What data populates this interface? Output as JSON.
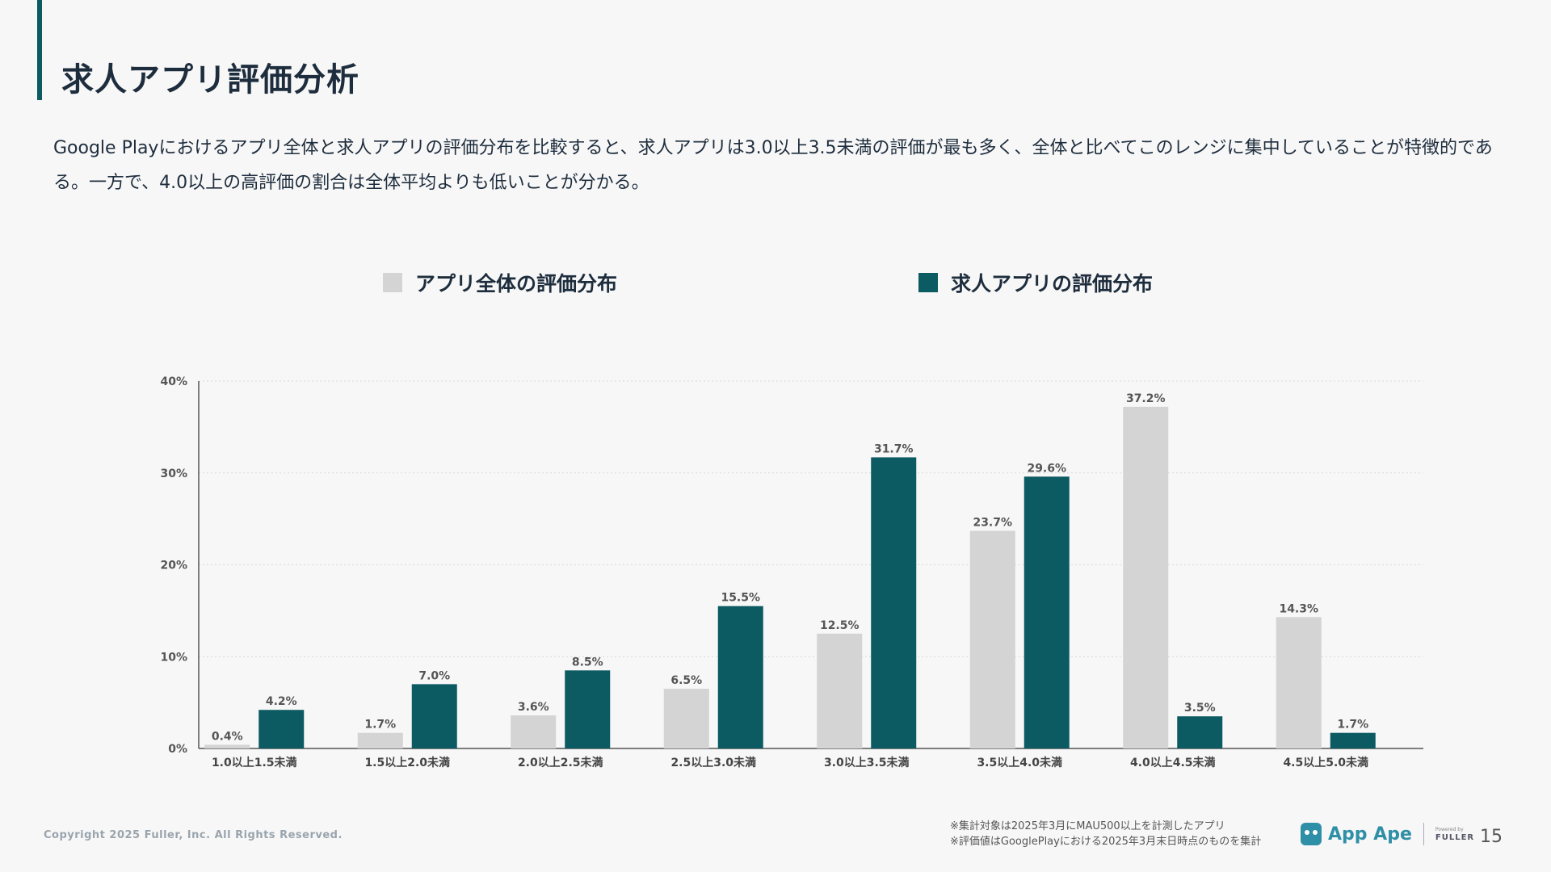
{
  "title": "求人アプリ評価分析",
  "description": "Google Playにおけるアプリ全体と求人アプリの評価分布を比較すると、求人アプリは3.0以上3.5未満の評価が最も多く、全体と比べてこのレンジに集中していることが特徴的である。一方で、4.0以上の高評価の割合は全体平均よりも低いことが分かる。",
  "legend": {
    "series1": "アプリ全体の評価分布",
    "series2": "求人アプリの評価分布"
  },
  "colors": {
    "series1": "#d4d4d4",
    "series2": "#0c5a62",
    "accent": "#0c5a62"
  },
  "chart_data": {
    "type": "bar",
    "categories": [
      "1.0以上1.5未満",
      "1.5以上2.0未満",
      "2.0以上2.5未満",
      "2.5以上3.0未満",
      "3.0以上3.5未満",
      "3.5以上4.0未満",
      "4.0以上4.5未満",
      "4.5以上5.0未満"
    ],
    "series": [
      {
        "name": "アプリ全体の評価分布",
        "values": [
          0.4,
          1.7,
          3.6,
          6.5,
          12.5,
          23.7,
          37.2,
          14.3
        ]
      },
      {
        "name": "求人アプリの評価分布",
        "values": [
          4.2,
          7.0,
          8.5,
          15.5,
          31.7,
          29.6,
          3.5,
          1.7
        ]
      }
    ],
    "y_ticks": [
      "0%",
      "10%",
      "20%",
      "30%",
      "40%"
    ],
    "ylim": [
      0,
      40
    ],
    "grid": true,
    "legend_position": "top"
  },
  "footer": {
    "copyright": "Copyright 2025 Fuller, Inc. All Rights Reserved.",
    "note1": "※集計対象は2025年3月にMAU500以上を計測したアプリ",
    "note2": "※評価値はGooglePlayにおける2025年3月末日時点のものを集計",
    "logo_text": "App Ape",
    "powered_by": "Powered by",
    "brand": "FULLER",
    "page_number": "15"
  }
}
